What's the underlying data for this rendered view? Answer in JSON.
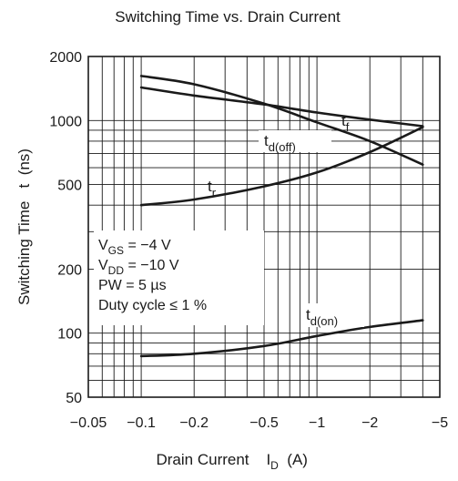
{
  "chart_data": {
    "type": "line",
    "title": "Switching Time vs. Drain Current",
    "xlabel": "Drain Current",
    "xlabel_symbol": "I",
    "xlabel_sub": "D",
    "xlabel_unit": "(A)",
    "ylabel": "Switching Time   t  (ns)",
    "x_scale": "log",
    "y_scale": "log",
    "xlim": [
      -0.05,
      -5
    ],
    "ylim": [
      50,
      2000
    ],
    "grid": true,
    "x_ticks": [
      {
        "value": -0.05,
        "label": "−0.05"
      },
      {
        "value": -0.1,
        "label": "−0.1"
      },
      {
        "value": -0.2,
        "label": "−0.2"
      },
      {
        "value": -0.5,
        "label": "−0.5"
      },
      {
        "value": -1,
        "label": "−1"
      },
      {
        "value": -2,
        "label": "−2"
      },
      {
        "value": -5,
        "label": "−5"
      }
    ],
    "y_ticks": [
      {
        "value": 50,
        "label": "50"
      },
      {
        "value": 100,
        "label": "100"
      },
      {
        "value": 200,
        "label": "200"
      },
      {
        "value": 500,
        "label": "500"
      },
      {
        "value": 1000,
        "label": "1000"
      },
      {
        "value": 2000,
        "label": "2000"
      }
    ],
    "series": [
      {
        "name": "tf",
        "label_main": "t",
        "label_sub": "f",
        "x": [
          -0.1,
          -0.2,
          -0.5,
          -1,
          -2,
          -4
        ],
        "y": [
          1430,
          1310,
          1190,
          1090,
          1010,
          940
        ]
      },
      {
        "name": "td(off)",
        "label_main": "t",
        "label_sub": "d(off)",
        "x": [
          -0.1,
          -0.2,
          -0.5,
          -1,
          -2,
          -4
        ],
        "y": [
          1620,
          1480,
          1200,
          980,
          800,
          620
        ]
      },
      {
        "name": "tr",
        "label_main": "t",
        "label_sub": "r",
        "x": [
          -0.1,
          -0.2,
          -0.5,
          -1,
          -2,
          -4
        ],
        "y": [
          400,
          425,
          490,
          570,
          710,
          930
        ]
      },
      {
        "name": "td(on)",
        "label_main": "t",
        "label_sub": "d(on)",
        "x": [
          -0.1,
          -0.2,
          -0.5,
          -1,
          -2,
          -4
        ],
        "y": [
          78,
          80,
          87,
          97,
          107,
          115
        ]
      }
    ],
    "conditions": [
      {
        "main": "V",
        "sub": "GS",
        "rest": " = −4 V"
      },
      {
        "main": "V",
        "sub": "DD",
        "rest": " = −10 V"
      },
      {
        "main": "PW = 5 µs",
        "sub": "",
        "rest": ""
      },
      {
        "main": "Duty cycle ≤ 1 %",
        "sub": "",
        "rest": ""
      }
    ]
  }
}
